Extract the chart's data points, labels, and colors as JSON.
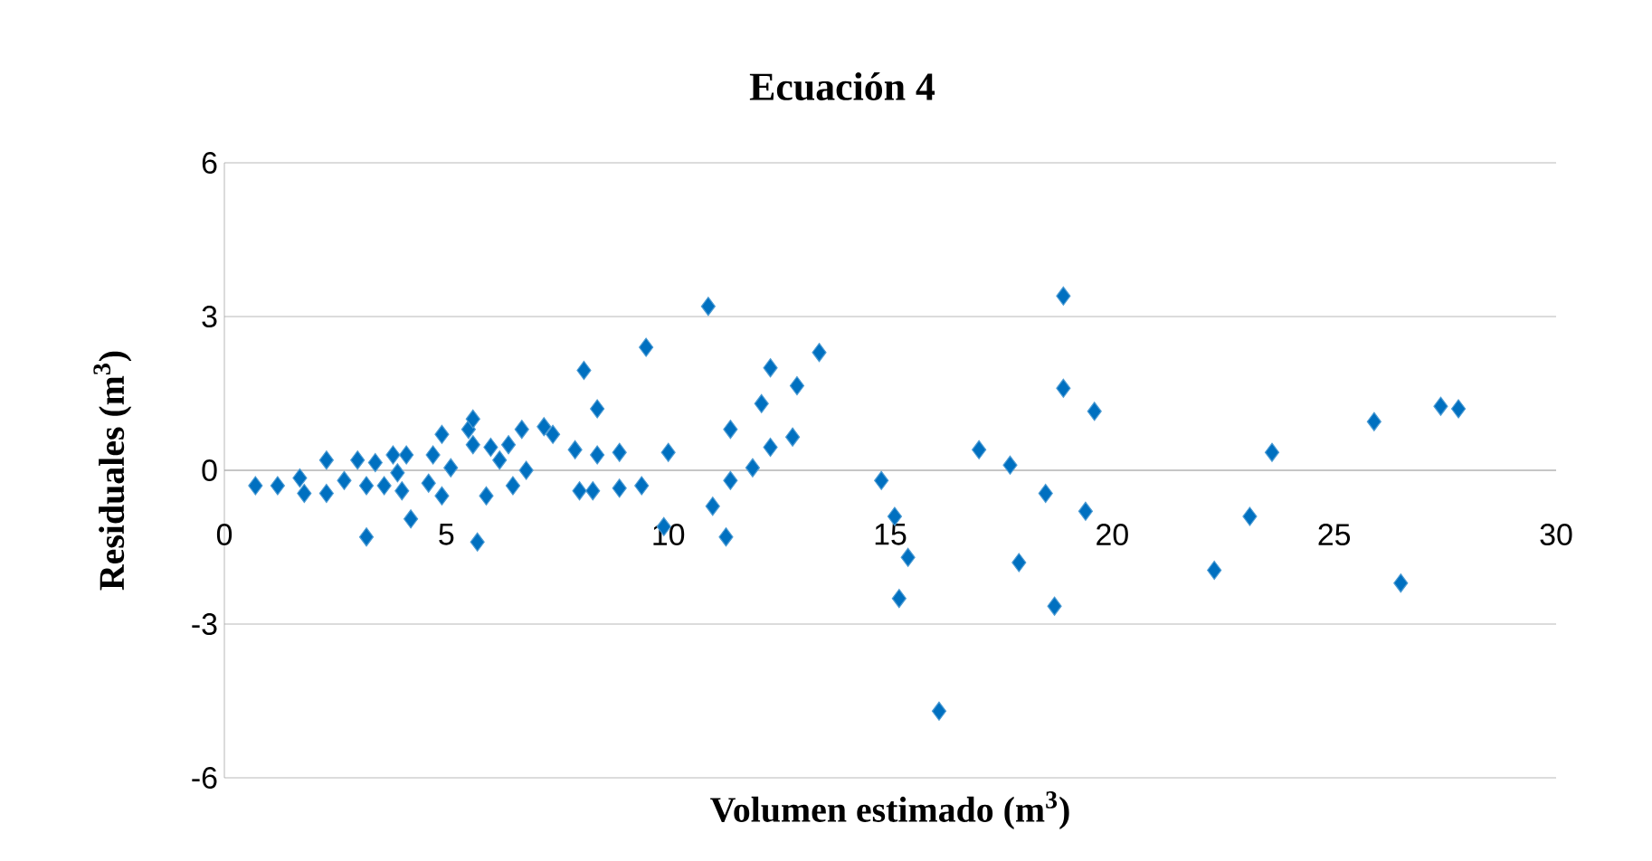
{
  "chart_data": {
    "type": "scatter",
    "title": "Ecuación 4",
    "xlabel": "Volumen estimado (m$^{3}$)",
    "ylabel": "Residuales (m$^{3}$)",
    "xlim": [
      0,
      30
    ],
    "ylim": [
      -6,
      6
    ],
    "xticks": [
      0,
      5,
      10,
      15,
      20,
      25,
      30
    ],
    "yticks": [
      -6,
      -3,
      0,
      3,
      6
    ],
    "grid": "y",
    "marker": "diamond",
    "series": [
      {
        "color": "#0070c0",
        "x": [
          0.7,
          1.2,
          1.7,
          1.8,
          2.3,
          2.3,
          2.7,
          3.0,
          3.2,
          3.2,
          3.4,
          3.6,
          3.8,
          3.9,
          4.1,
          4.2,
          4.0,
          4.6,
          4.7,
          4.9,
          4.9,
          5.1,
          5.5,
          5.6,
          5.7,
          5.9,
          5.6,
          6.0,
          6.2,
          6.4,
          6.7,
          6.5,
          6.8,
          7.2,
          7.4,
          7.9,
          8.0,
          8.1,
          8.3,
          8.4,
          8.4,
          8.9,
          8.9,
          9.4,
          9.5,
          10.0,
          9.9,
          10.9,
          11.0,
          11.3,
          11.4,
          11.4,
          11.9,
          12.1,
          12.3,
          12.3,
          12.8,
          12.9,
          13.4,
          14.8,
          15.1,
          15.2,
          15.4,
          16.1,
          17.0,
          17.7,
          17.9,
          18.5,
          18.7,
          18.9,
          18.9,
          19.4,
          19.6,
          22.3,
          23.1,
          23.6,
          25.9,
          26.5,
          27.4,
          27.8
        ],
        "values": [
          -0.3,
          -0.3,
          -0.15,
          -0.45,
          -0.45,
          0.2,
          -0.2,
          0.2,
          -1.3,
          -0.3,
          0.15,
          -0.3,
          0.3,
          -0.05,
          0.3,
          -0.95,
          -0.4,
          -0.25,
          0.3,
          0.7,
          -0.5,
          0.05,
          0.8,
          0.5,
          -1.4,
          -0.5,
          1.0,
          0.45,
          0.2,
          0.5,
          0.8,
          -0.3,
          0.0,
          0.85,
          0.7,
          0.4,
          -0.4,
          1.95,
          -0.4,
          1.2,
          0.3,
          -0.35,
          0.35,
          -0.3,
          2.4,
          0.35,
          -1.1,
          3.2,
          -0.7,
          -1.3,
          0.8,
          -0.2,
          0.05,
          1.3,
          2.0,
          0.45,
          0.65,
          1.65,
          2.3,
          -0.2,
          -0.9,
          -2.5,
          -1.7,
          -4.7,
          0.4,
          0.1,
          -1.8,
          -0.45,
          -2.65,
          3.4,
          1.6,
          -0.8,
          1.15,
          -1.95,
          -0.9,
          0.35,
          0.95,
          -2.2,
          1.25,
          1.2
        ]
      }
    ]
  }
}
